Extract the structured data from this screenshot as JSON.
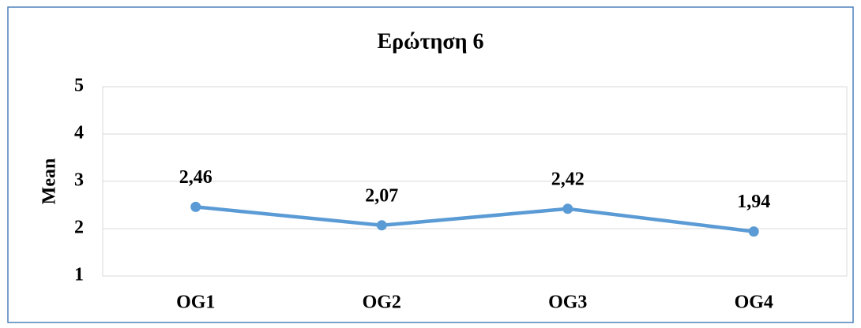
{
  "chart_data": {
    "type": "line",
    "title": "Ερώτηση 6",
    "ylabel": "Mean",
    "categories": [
      "OG1",
      "OG2",
      "OG3",
      "OG4"
    ],
    "values": [
      2.46,
      2.07,
      2.42,
      1.94
    ],
    "value_labels": [
      "2,46",
      "2,07",
      "2,42",
      "1,94"
    ],
    "color": "#5b9bd5",
    "ylim": [
      1,
      5
    ],
    "yticks": [
      1,
      2,
      3,
      4,
      5
    ],
    "grid": true
  }
}
